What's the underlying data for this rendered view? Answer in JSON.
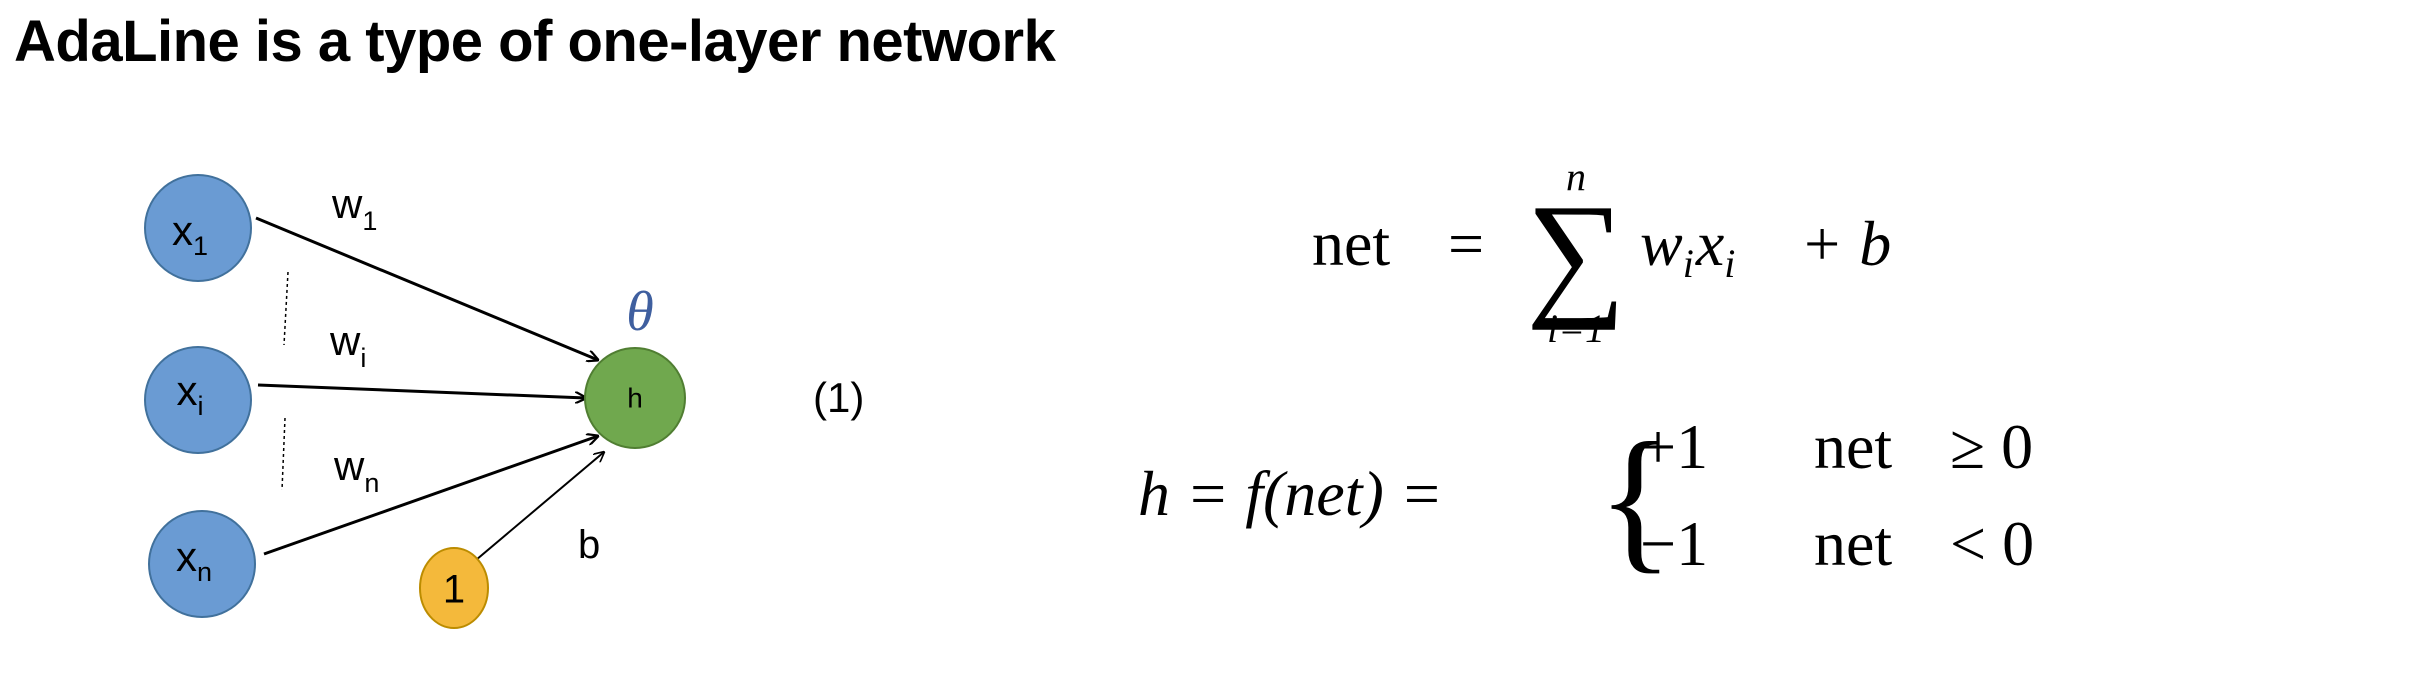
{
  "title": "AdaLine is a type of one-layer network",
  "network": {
    "inputs": [
      {
        "label": "x",
        "sub": "1"
      },
      {
        "label": "x",
        "sub": "i"
      },
      {
        "label": "x",
        "sub": "n"
      }
    ],
    "weights": [
      {
        "label": "w",
        "sub": "1"
      },
      {
        "label": "w",
        "sub": "i"
      },
      {
        "label": "w",
        "sub": "n"
      }
    ],
    "bias_node": "1",
    "bias_label": "b",
    "output_node": "h",
    "threshold": "θ",
    "colors": {
      "input": "#6a9bd3",
      "input_stroke": "#41719c",
      "output": "#70a84e",
      "output_stroke": "#507e32",
      "bias": "#f4b93b",
      "bias_stroke": "#bc8c00",
      "theta": "#3f5f9f"
    }
  },
  "equation_number": "(1)",
  "formula1": {
    "lhs": "net",
    "eq": "=",
    "sum": "∑",
    "upper": "n",
    "lower": "i=1",
    "w": "w",
    "w_sub": "i",
    "x": "x",
    "x_sub": "i",
    "plus_b": "+ b"
  },
  "formula2": {
    "lhs": "h = f(net) =",
    "brace": "{",
    "case1_val": "+1",
    "case1_cond_word": "net",
    "case1_cond_op": "≥ 0",
    "case2_val": "−1",
    "case2_cond_word": "net",
    "case2_cond_op": "< 0"
  }
}
